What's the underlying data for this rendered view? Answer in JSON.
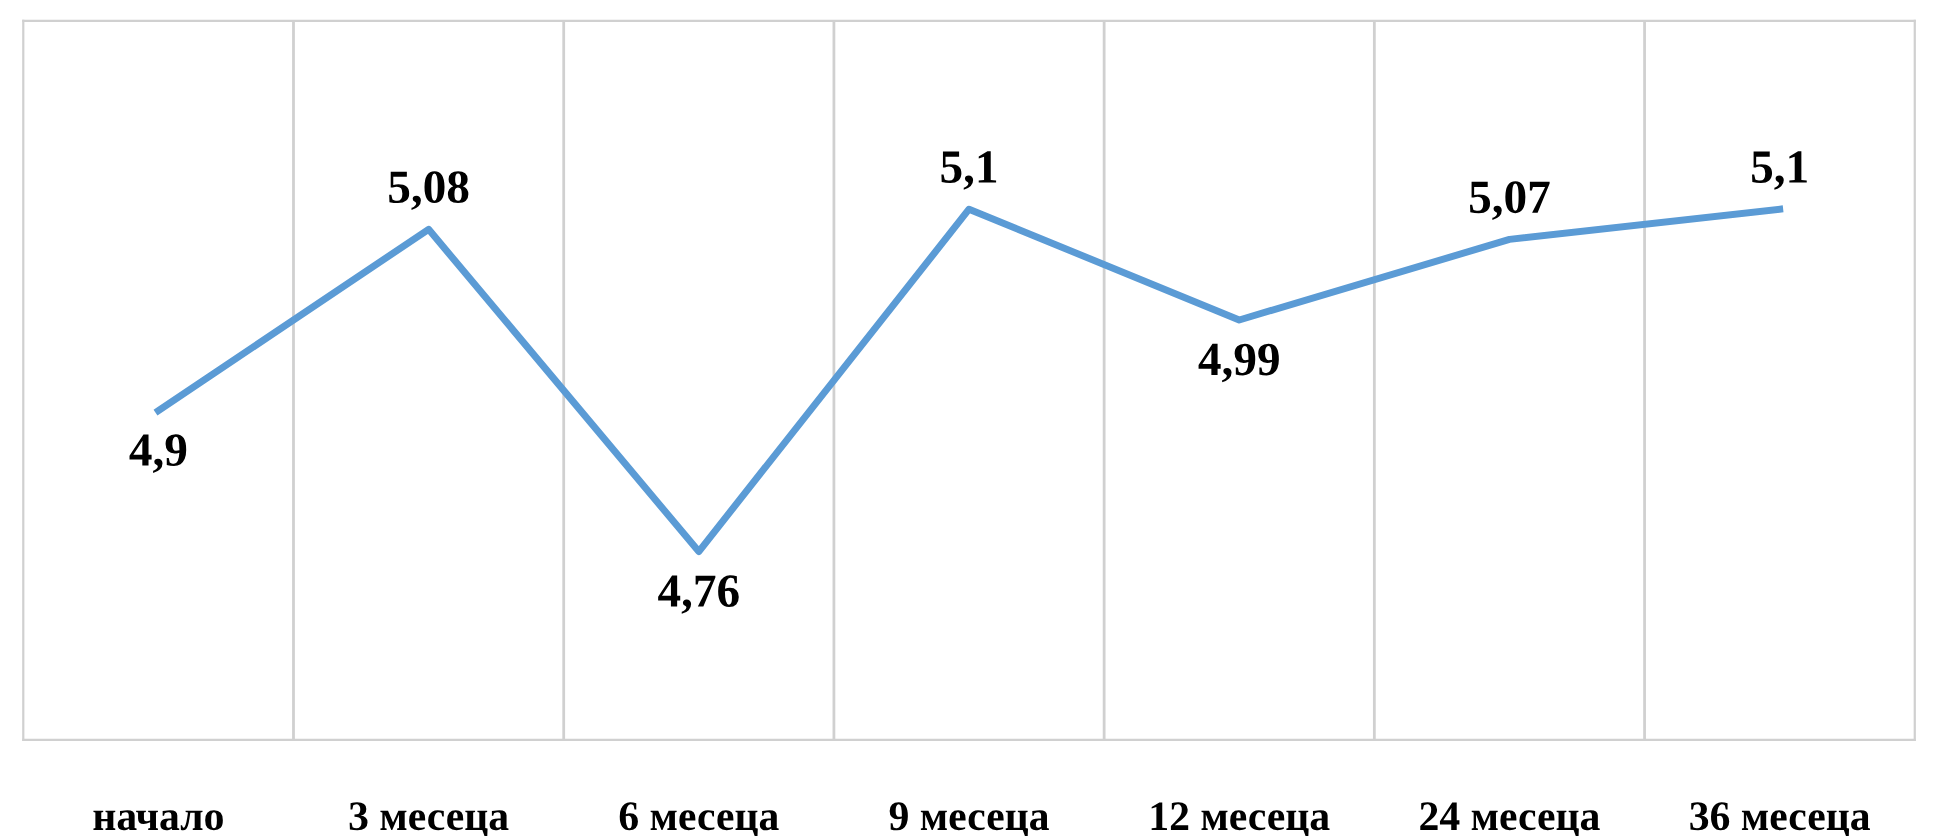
{
  "chart_data": {
    "type": "line",
    "categories": [
      "начало",
      "3 месеца",
      "6 месеца",
      "9 месеца",
      "12 месеца",
      "24 месеца",
      "36 месеца"
    ],
    "series": [
      {
        "color": "#5b9bd5",
        "values": [
          4.9,
          5.08,
          4.76,
          5.1,
          4.99,
          5.07,
          5.1
        ],
        "value_labels": [
          "4,9",
          "5,08",
          "4,76",
          "5,1",
          "4,99",
          "5,07",
          "5,1"
        ]
      }
    ],
    "grid": "x",
    "line_style": "solid",
    "tick_labels": "x"
  }
}
